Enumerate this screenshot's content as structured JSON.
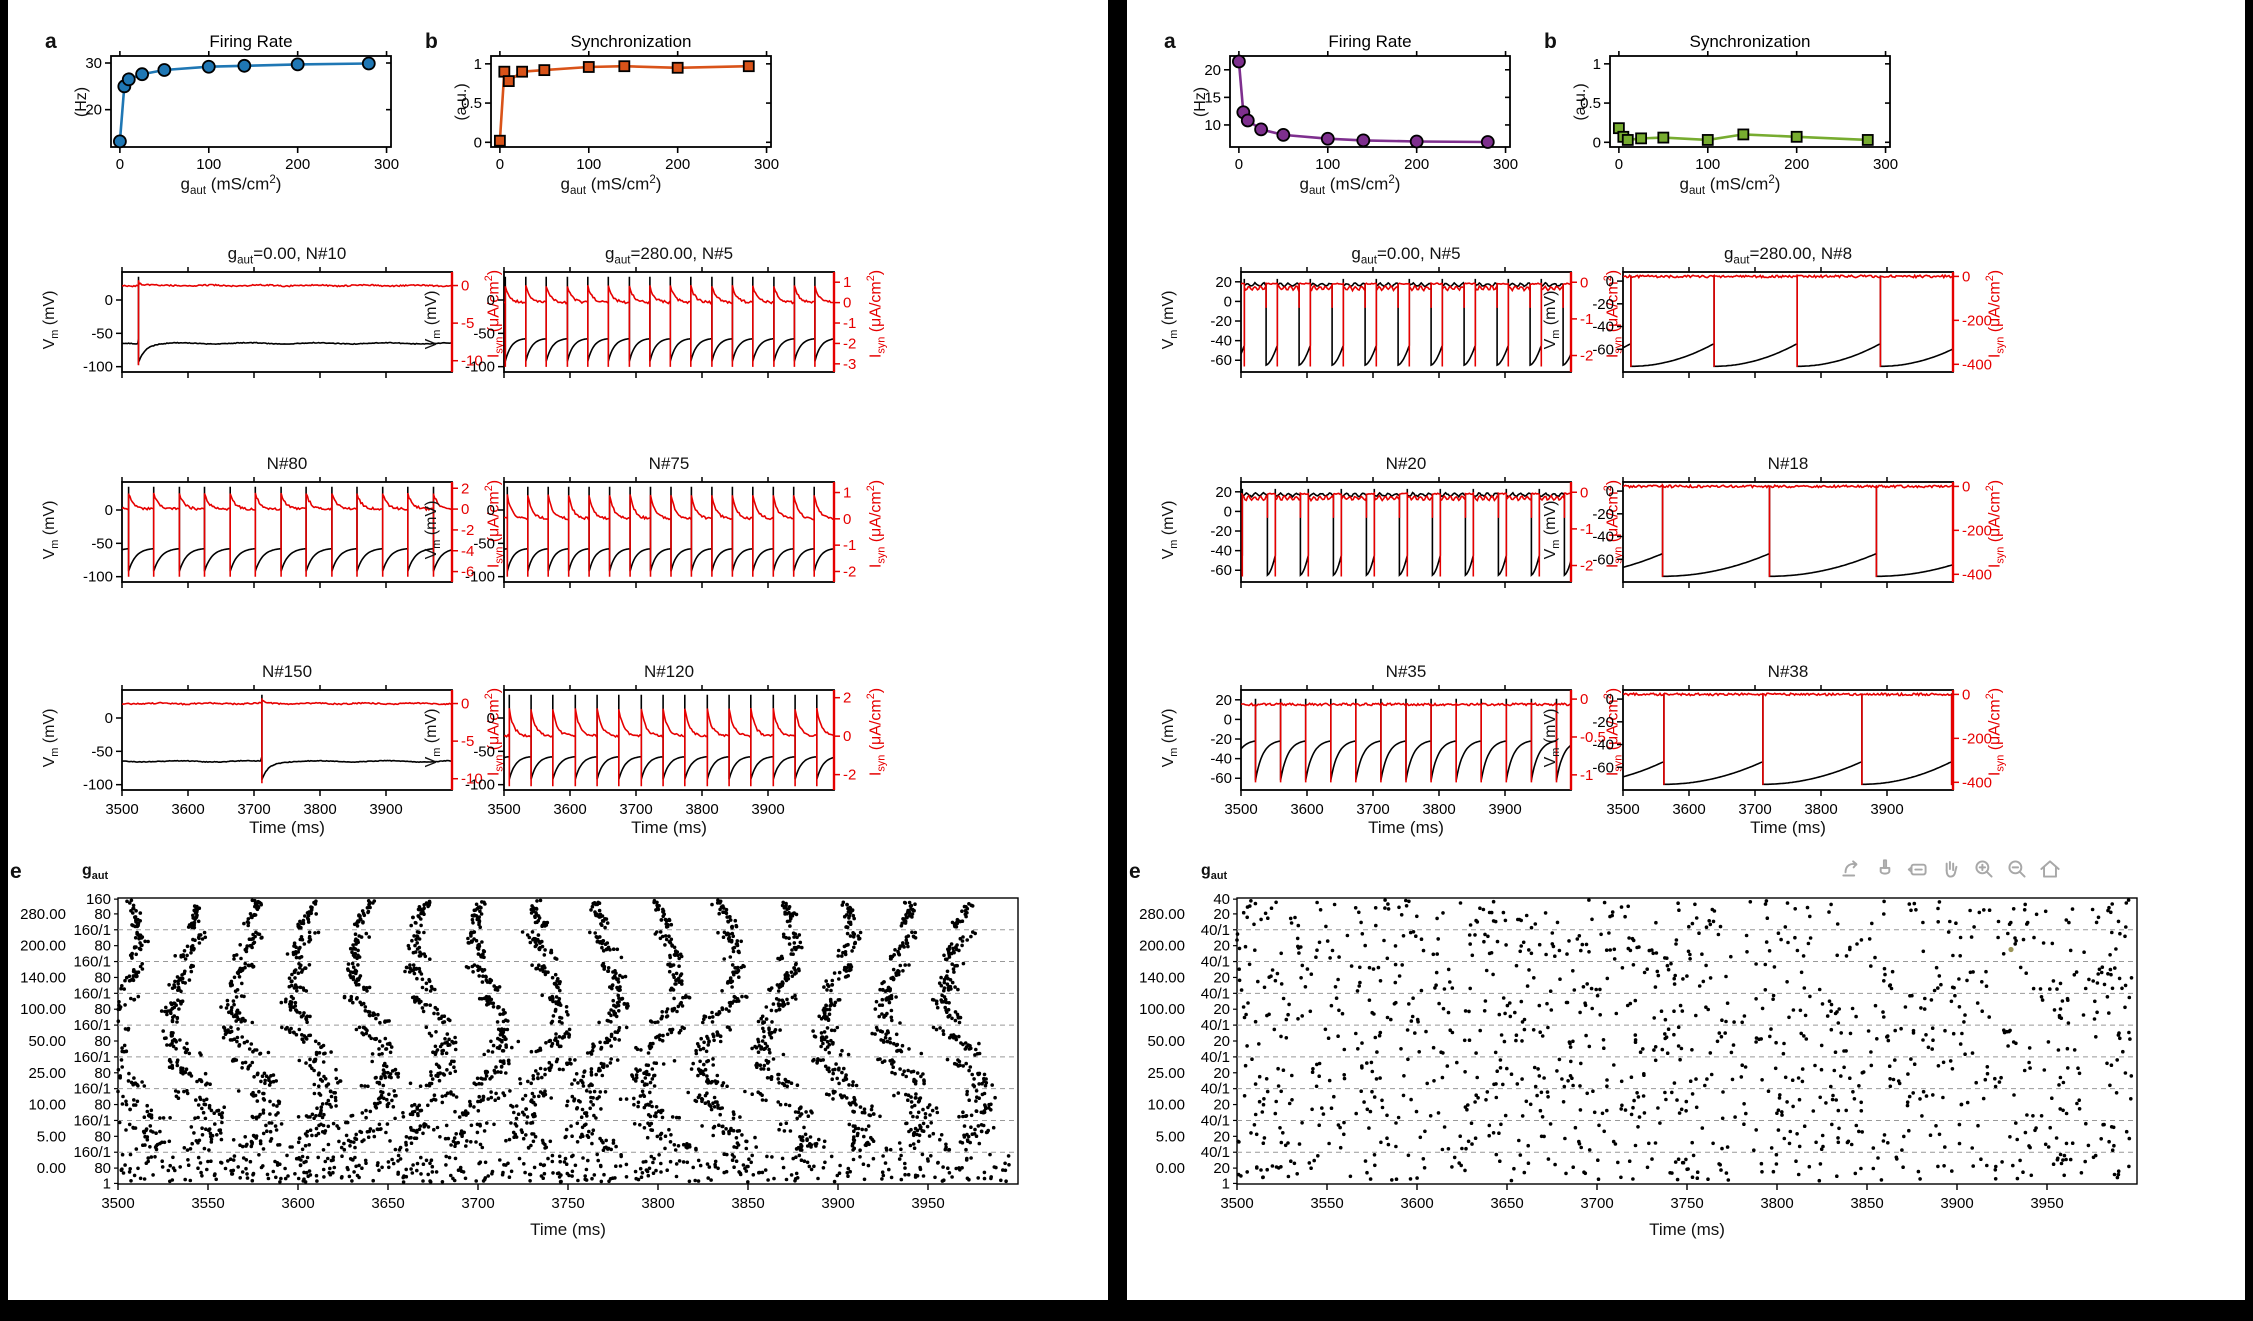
{
  "shared": {
    "panels": {
      "a": "a",
      "b": "b",
      "e": "e"
    },
    "time": "Time (ms)",
    "gaut": {
      "base": "g",
      "sub": "aut",
      "unit": " (mS/cm",
      "sup": "2",
      "close": ")"
    },
    "vm": {
      "base": "V",
      "sub": "m",
      "unit": " (mV)"
    },
    "isyn": {
      "base": "I",
      "sub": "syn",
      "unit": " (μA/cm",
      "sup": "2",
      "close": ")"
    }
  },
  "toolbar": {
    "icons": [
      "export",
      "brush",
      "annotate",
      "pan",
      "zoom-in",
      "zoom-out",
      "home"
    ]
  },
  "chart_data": [
    {
      "type": "line",
      "title": "Firing Rate",
      "ylabel": "(Hz)",
      "color": "#1f77b4",
      "marker": "circle",
      "x": [
        0,
        5,
        10,
        25,
        50,
        100,
        140,
        200,
        280
      ],
      "y": [
        13.2,
        25.0,
        26.5,
        27.6,
        28.5,
        29.2,
        29.4,
        29.7,
        29.9
      ],
      "xlim": [
        -10,
        305
      ],
      "ylim": [
        12,
        31.5
      ],
      "xticks": [
        0,
        100,
        200,
        300
      ],
      "yticks": [
        20,
        30
      ]
    },
    {
      "type": "line",
      "title": "Synchronization",
      "ylabel": "(a.u.)",
      "color": "#d95319",
      "marker": "square",
      "x": [
        0,
        5,
        10,
        25,
        50,
        100,
        140,
        200,
        280
      ],
      "y": [
        0.02,
        0.9,
        0.78,
        0.9,
        0.92,
        0.96,
        0.97,
        0.95,
        0.97
      ],
      "xlim": [
        -10,
        305
      ],
      "ylim": [
        -0.06,
        1.1
      ],
      "xticks": [
        0,
        100,
        200,
        300
      ],
      "yticks": [
        0,
        0.5,
        1
      ]
    },
    {
      "type": "line",
      "title": "Firing Rate",
      "ylabel": "(Hz)",
      "color": "#7e2f8e",
      "marker": "circle",
      "x": [
        0,
        5,
        10,
        25,
        50,
        100,
        140,
        200,
        280
      ],
      "y": [
        21.5,
        12.3,
        10.8,
        9.2,
        8.2,
        7.5,
        7.2,
        7.0,
        6.9
      ],
      "xlim": [
        -10,
        305
      ],
      "ylim": [
        6,
        22.5
      ],
      "xticks": [
        0,
        100,
        200,
        300
      ],
      "yticks": [
        10,
        15,
        20
      ]
    },
    {
      "type": "line",
      "title": "Synchronization",
      "ylabel": "(a.u.)",
      "color": "#77ac30",
      "marker": "square",
      "x": [
        0,
        5,
        10,
        25,
        50,
        100,
        140,
        200,
        280
      ],
      "y": [
        0.18,
        0.07,
        0.03,
        0.05,
        0.06,
        0.03,
        0.1,
        0.07,
        0.03
      ],
      "xlim": [
        -10,
        305
      ],
      "ylim": [
        -0.06,
        1.1
      ],
      "xticks": [
        0,
        100,
        200,
        300
      ],
      "yticks": [
        0,
        0.5,
        1
      ]
    },
    {
      "type": "trace",
      "title_pre": "g",
      "title_sub": "aut",
      "title_post": "=0.00, N#10",
      "pattern": "quiet",
      "spike_times": [
        3525
      ],
      "rest": -65,
      "vp": 35,
      "vreset": -93,
      "left_ticks": [
        0,
        -50,
        -100
      ],
      "left_lim": [
        -108,
        42
      ],
      "right_ticks": [
        0,
        -5,
        -10
      ],
      "right_lim": [
        -11.5,
        1.8
      ],
      "red_min": -10.6,
      "red_peak": 0.7,
      "show_xticks": false
    },
    {
      "type": "trace",
      "title_pre": "g",
      "title_sub": "aut",
      "title_post": "=280.00, N#5",
      "pattern": "tonic",
      "spike_times": [
        3502,
        3533,
        3564,
        3596,
        3627,
        3658,
        3690,
        3721,
        3752,
        3783,
        3815,
        3846,
        3877,
        3909,
        3940,
        3971
      ],
      "vb": -92,
      "vk": -58,
      "vp": 35,
      "left_ticks": [
        0,
        -50,
        -100
      ],
      "left_lim": [
        -108,
        42
      ],
      "right_ticks": [
        1,
        0,
        -1,
        -2,
        -3
      ],
      "right_lim": [
        -3.4,
        1.5
      ],
      "red_min": -3.15,
      "red_peak": 0.8,
      "show_xticks": false
    },
    {
      "type": "trace",
      "title_pre": "",
      "title_sub": "",
      "title_post": "N#80",
      "pattern": "tonic",
      "spike_times": [
        3510,
        3548,
        3587,
        3625,
        3664,
        3702,
        3741,
        3779,
        3818,
        3856,
        3895,
        3933,
        3972
      ],
      "vb": -92,
      "vk": -58,
      "vp": 35,
      "left_ticks": [
        0,
        -50,
        -100
      ],
      "left_lim": [
        -108,
        42
      ],
      "right_ticks": [
        2,
        0,
        -2,
        -4,
        -6
      ],
      "right_lim": [
        -7,
        2.6
      ],
      "red_min": -6.5,
      "red_peak": 1.5,
      "show_xticks": false
    },
    {
      "type": "trace",
      "title_pre": "",
      "title_sub": "",
      "title_post": "N#75",
      "pattern": "tonic",
      "spike_times": [
        3505,
        3536,
        3567,
        3598,
        3629,
        3660,
        3691,
        3722,
        3753,
        3784,
        3815,
        3846,
        3877,
        3908,
        3939,
        3970
      ],
      "vb": -92,
      "vk": -58,
      "vp": 35,
      "left_ticks": [
        0,
        -50,
        -100
      ],
      "left_lim": [
        -108,
        42
      ],
      "right_ticks": [
        1,
        0,
        -1,
        -2
      ],
      "right_lim": [
        -2.4,
        1.4
      ],
      "red_min": -2.2,
      "red_peak": 0.9,
      "show_xticks": false
    },
    {
      "type": "trace",
      "title_pre": "",
      "title_sub": "",
      "title_post": "N#150",
      "pattern": "quiet",
      "spike_times": [
        3712
      ],
      "rest": -65,
      "vp": 35,
      "vreset": -93,
      "left_ticks": [
        0,
        -50,
        -100
      ],
      "left_lim": [
        -108,
        42
      ],
      "right_ticks": [
        0,
        -5,
        -10
      ],
      "right_lim": [
        -11.5,
        1.8
      ],
      "red_min": -10.6,
      "red_peak": 0.7,
      "show_xticks": true
    },
    {
      "type": "trace",
      "title_pre": "",
      "title_sub": "",
      "title_post": "N#120",
      "pattern": "tonic",
      "spike_times": [
        3508,
        3541,
        3574,
        3608,
        3641,
        3674,
        3708,
        3741,
        3774,
        3808,
        3841,
        3874,
        3908,
        3941,
        3974
      ],
      "vb": -92,
      "vk": -58,
      "vp": 35,
      "left_ticks": [
        0,
        -50,
        -100
      ],
      "left_lim": [
        -108,
        42
      ],
      "right_ticks": [
        2,
        0,
        -2
      ],
      "right_lim": [
        -2.8,
        2.4
      ],
      "red_min": -2.6,
      "red_peak": 1.4,
      "show_xticks": true
    },
    {
      "type": "trace",
      "title_pre": "g",
      "title_sub": "aut",
      "title_post": "=0.00, N#5",
      "pattern": "plateau",
      "onsets": [
        3505,
        3555,
        3605,
        3655,
        3705,
        3755,
        3805,
        3855,
        3905,
        3955
      ],
      "dur": 33,
      "vb": -65,
      "vk": -45,
      "pl": 17,
      "vp": 23,
      "left_ticks": [
        20,
        0,
        -20,
        -40,
        -60
      ],
      "left_lim": [
        -72,
        30
      ],
      "right_ticks": [
        0,
        -1,
        -2
      ],
      "right_lim": [
        -2.45,
        0.28
      ],
      "red_min": -2.3,
      "red_burst": -0.16,
      "red_inter": -0.04,
      "show_xticks": false
    },
    {
      "type": "trace",
      "title_pre": "g",
      "title_sub": "aut",
      "title_post": "=280.00, N#8",
      "pattern": "ramp",
      "spike_times": [
        3512,
        3638,
        3764,
        3890
      ],
      "vb": -75,
      "vk": -55,
      "vp": 5,
      "left_ticks": [
        0,
        -20,
        -40,
        -60
      ],
      "left_lim": [
        -80,
        8
      ],
      "right_ticks": [
        0,
        -200,
        -400
      ],
      "right_lim": [
        -435,
        20
      ],
      "red_min": -412,
      "red_peak": 0,
      "show_xticks": false
    },
    {
      "type": "trace",
      "title_pre": "",
      "title_sub": "",
      "title_post": "N#20",
      "pattern": "plateau",
      "onsets": [
        3502,
        3552,
        3602,
        3652,
        3702,
        3752,
        3802,
        3852,
        3902,
        3952
      ],
      "dur": 38,
      "vb": -65,
      "vk": -45,
      "pl": 17,
      "vp": 23,
      "left_ticks": [
        20,
        0,
        -20,
        -40,
        -60
      ],
      "left_lim": [
        -72,
        30
      ],
      "right_ticks": [
        0,
        -1,
        -2
      ],
      "right_lim": [
        -2.45,
        0.28
      ],
      "red_min": -2.3,
      "red_burst": -0.16,
      "red_inter": -0.04,
      "show_xticks": false
    },
    {
      "type": "trace",
      "title_pre": "",
      "title_sub": "",
      "title_post": "N#18",
      "pattern": "ramp",
      "spike_times": [
        3560,
        3722,
        3884
      ],
      "vb": -75,
      "vk": -55,
      "vp": 5,
      "left_ticks": [
        0,
        -20,
        -40,
        -60
      ],
      "left_lim": [
        -80,
        8
      ],
      "right_ticks": [
        0,
        -200,
        -400
      ],
      "right_lim": [
        -435,
        20
      ],
      "red_min": -412,
      "red_peak": 0,
      "show_xticks": false
    },
    {
      "type": "trace",
      "title_pre": "",
      "title_sub": "",
      "title_post": "N#35",
      "pattern": "tonic",
      "spike_times": [
        3522,
        3560,
        3598,
        3636,
        3674,
        3712,
        3750,
        3788,
        3826,
        3864,
        3902,
        3940,
        3978
      ],
      "vb": -62,
      "vk": -22,
      "vp": 21,
      "left_ticks": [
        20,
        0,
        -20,
        -40,
        -60
      ],
      "left_lim": [
        -72,
        30
      ],
      "right_ticks": [
        0,
        -0.5,
        -1
      ],
      "right_lim": [
        -1.2,
        0.12
      ],
      "red_min": -1.1,
      "red_peak": 0,
      "red_base": -0.07,
      "show_xticks": true
    },
    {
      "type": "trace",
      "title_pre": "",
      "title_sub": "",
      "title_post": "N#38",
      "pattern": "ramp",
      "spike_times": [
        3562,
        3712,
        3862,
        3998
      ],
      "vb": -75,
      "vk": -55,
      "vp": 5,
      "left_ticks": [
        0,
        -20,
        -40,
        -60
      ],
      "left_lim": [
        -80,
        8
      ],
      "right_ticks": [
        0,
        -200,
        -400
      ],
      "right_lim": [
        -435,
        20
      ],
      "red_min": -412,
      "red_peak": 0,
      "show_xticks": true
    },
    {
      "type": "raster",
      "group_values": [
        "280.00",
        "200.00",
        "140.00",
        "100.00",
        "50.00",
        "25.00",
        "10.00",
        "5.00",
        "0.00"
      ],
      "groups": [
        {
          "mode": "sync",
          "jitter": 3,
          "drift": 5,
          "dots": 30
        },
        {
          "mode": "sync",
          "jitter": 4,
          "drift": 7,
          "dots": 30
        },
        {
          "mode": "sync",
          "jitter": 4,
          "drift": 8,
          "dots": 31
        },
        {
          "mode": "sync",
          "jitter": 5,
          "drift": 10,
          "dots": 32
        },
        {
          "mode": "sync",
          "jitter": 6,
          "drift": 11,
          "dots": 32
        },
        {
          "mode": "sync",
          "jitter": 7,
          "drift": 12,
          "dots": 33
        },
        {
          "mode": "sync",
          "jitter": 8,
          "drift": 13,
          "dots": 34
        },
        {
          "mode": "sync",
          "jitter": 10,
          "drift": 14,
          "dots": 34
        },
        {
          "mode": "async",
          "dots": 430
        }
      ],
      "inner_top": "160",
      "inner_mid": "80",
      "inner_boundary": "160/1",
      "inner_bottom": "1",
      "band_period": 33,
      "band_start": 3506,
      "xlim": [
        3500,
        4000
      ],
      "xticks": [
        3500,
        3550,
        3600,
        3650,
        3700,
        3750,
        3800,
        3850,
        3900,
        3950
      ],
      "seed": 5
    },
    {
      "type": "raster",
      "group_values": [
        "280.00",
        "200.00",
        "140.00",
        "100.00",
        "50.00",
        "25.00",
        "10.00",
        "5.00",
        "0.00"
      ],
      "groups": [
        {
          "mode": "async",
          "dots": 135
        },
        {
          "mode": "async",
          "dots": 135
        },
        {
          "mode": "async",
          "dots": 135
        },
        {
          "mode": "async",
          "dots": 135
        },
        {
          "mode": "async",
          "dots": 135
        },
        {
          "mode": "async",
          "dots": 135
        },
        {
          "mode": "async",
          "dots": 135
        },
        {
          "mode": "async",
          "dots": 135
        },
        {
          "mode": "async",
          "dots": 135
        }
      ],
      "inner_top": "40",
      "inner_mid": "20",
      "inner_boundary": "40/1",
      "inner_bottom": "1",
      "xlim": [
        3500,
        4000
      ],
      "xticks": [
        3500,
        3550,
        3600,
        3650,
        3700,
        3750,
        3800,
        3850,
        3900,
        3950
      ],
      "seed": 11,
      "highlight": {
        "t": 3930,
        "frac": 0.18,
        "color": "#9a9457"
      }
    }
  ]
}
